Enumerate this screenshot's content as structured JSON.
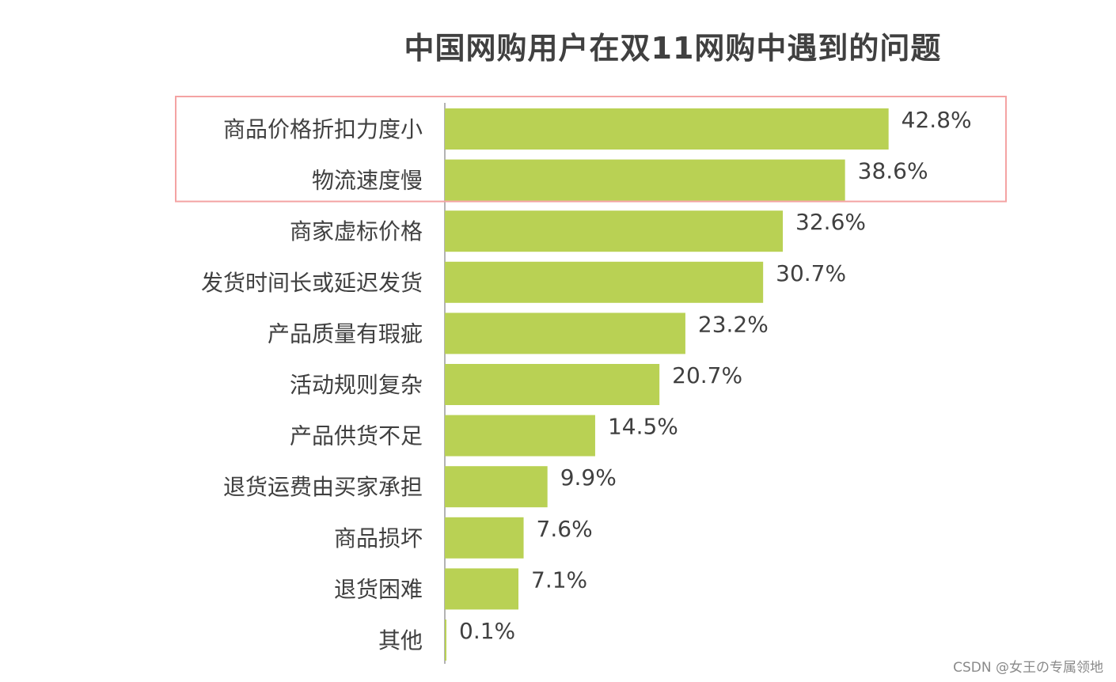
{
  "chart_data": {
    "type": "bar",
    "orientation": "horizontal",
    "title": "中国网购用户在双11网购中遇到的问题",
    "xlabel": "",
    "ylabel": "",
    "xlim": [
      0,
      50
    ],
    "grid": false,
    "legend": "none",
    "categories": [
      "商品价格折扣力度小",
      "物流速度慢",
      "商家虚标价格",
      "发货时间长或延迟发货",
      "产品质量有瑕疵",
      "活动规则复杂",
      "产品供货不足",
      "退货运费由买家承担",
      "商品损坏",
      "退货困难",
      "其他"
    ],
    "values": [
      42.8,
      38.6,
      32.6,
      30.7,
      23.2,
      20.7,
      14.5,
      9.9,
      7.6,
      7.1,
      0.1
    ],
    "value_labels": [
      "42.8%",
      "38.6%",
      "32.6%",
      "30.7%",
      "23.2%",
      "20.7%",
      "14.5%",
      "9.9%",
      "7.6%",
      "7.1%",
      "0.1%"
    ],
    "bar_color": "#b9d154",
    "highlight": {
      "categories": [
        "商品价格折扣力度小",
        "物流速度慢"
      ],
      "color": "#f4a3a3"
    }
  },
  "watermark": "CSDN @女王の专属领地"
}
